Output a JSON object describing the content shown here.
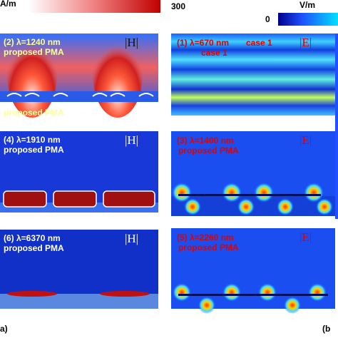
{
  "colorbars": {
    "h": {
      "unit": "A/m",
      "max": 300
    },
    "e": {
      "unit": "V/m",
      "min": 0
    }
  },
  "left_panels": [
    {
      "label": "(2) λ=1240 nm",
      "material": "proposed PMA",
      "field": "|H|",
      "extra": "proposed PMA"
    },
    {
      "label": "(4) λ=1910 nm",
      "material": "proposed PMA",
      "field": "|H|"
    },
    {
      "label": "(6) λ=6370 nm",
      "material": "proposed PMA",
      "field": "|H|"
    }
  ],
  "right_panels": [
    {
      "label": "(1) λ=670 nm",
      "material": "case 1",
      "field": "|E|",
      "extra": "case 1"
    },
    {
      "label": "(3) λ=1400 nm",
      "material": "proposed PMA",
      "field": "|E|"
    },
    {
      "label": "(5) λ=2260 nm",
      "material": "proposed PMA",
      "field": "|E|"
    }
  ],
  "subfigure_labels": [
    "a)",
    "(b"
  ]
}
